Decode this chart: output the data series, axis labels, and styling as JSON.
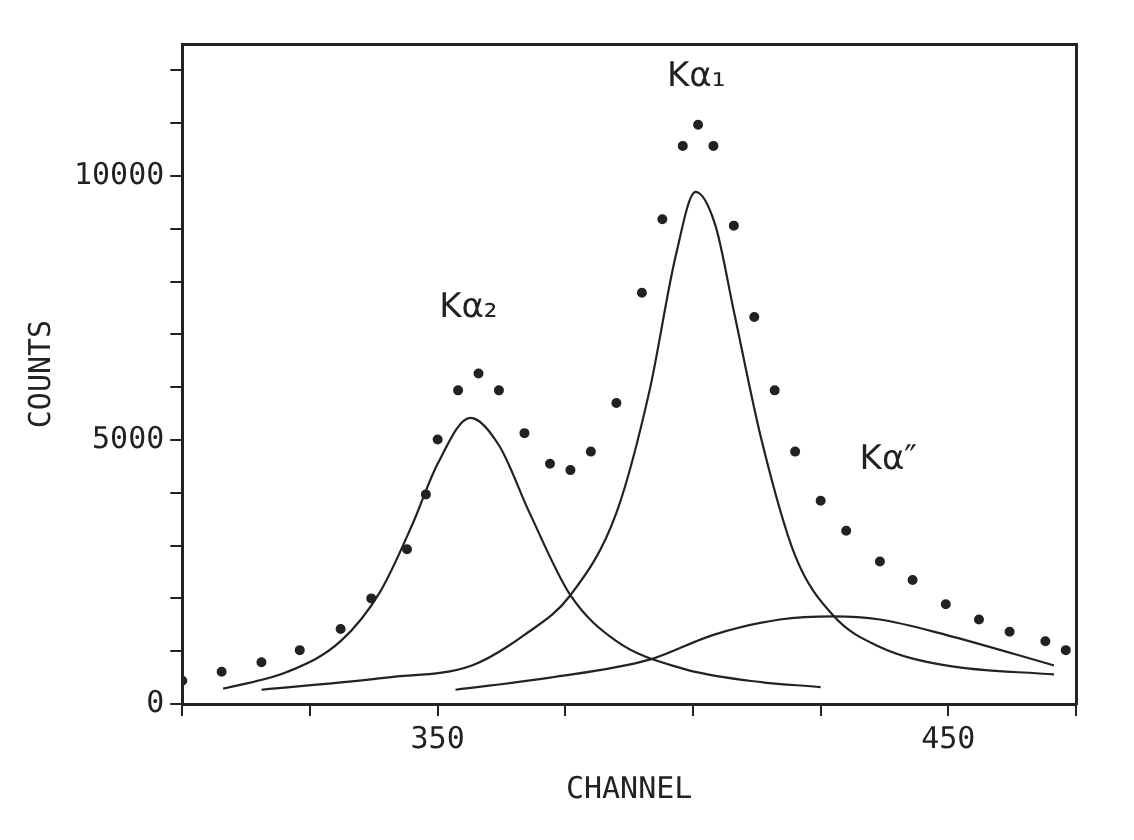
{
  "chart_data": {
    "type": "line",
    "xlabel": "CHANNEL",
    "ylabel": "COUNTS",
    "xlim": [
      300,
      475
    ],
    "xticks": [
      {
        "value": 300,
        "label": null
      },
      {
        "value": 325,
        "label": null
      },
      350,
      {
        "value": 375,
        "label": null
      },
      {
        "value": 400,
        "label": null
      },
      {
        "value": 425,
        "label": null
      },
      450,
      {
        "value": 475,
        "label": null
      }
    ],
    "ylim": [
      0,
      12500
    ],
    "yticks": [
      0,
      {
        "value": 1000,
        "label": null
      },
      {
        "value": 2000,
        "label": null
      },
      {
        "value": 3000,
        "label": null
      },
      {
        "value": 4000,
        "label": null
      },
      5000,
      {
        "value": 6000,
        "label": null
      },
      {
        "value": 7000,
        "label": null
      },
      {
        "value": 8000,
        "label": null
      },
      {
        "value": 9000,
        "label": null
      },
      10000,
      {
        "value": 11000,
        "label": null
      },
      {
        "value": 12000,
        "label": null
      }
    ],
    "grid": false,
    "legend": false,
    "series": [
      {
        "type": "scatter",
        "marker": "circle",
        "color": "#222222",
        "x": [
          300,
          307.7,
          315.5,
          323,
          331,
          337,
          344,
          347.7,
          350,
          354,
          358,
          362,
          367,
          372,
          376,
          380,
          385,
          390,
          394,
          398,
          401,
          404,
          408,
          412,
          416,
          420,
          425,
          430,
          436.6,
          443,
          449.5,
          456,
          462,
          469,
          473
        ],
        "values": [
          440,
          610,
          790,
          1020,
          1420,
          2000,
          2930,
          3970,
          5010,
          5940,
          6260,
          5940,
          5130,
          4550,
          4430,
          4780,
          5700,
          7790,
          9180,
          10570,
          10970,
          10570,
          9060,
          7330,
          5940,
          4780,
          3850,
          3280,
          2700,
          2350,
          1890,
          1600,
          1370,
          1190,
          1020
        ]
      },
      {
        "type": "line",
        "marker": "none",
        "color": "#222222",
        "x": [
          308,
          320.6,
          331,
          338.7,
          345,
          350,
          356.4,
          362,
          368,
          376,
          385,
          398,
          411,
          425
        ],
        "values": [
          290,
          610,
          1190,
          2120,
          3390,
          4550,
          5420,
          4900,
          3620,
          2060,
          1190,
          670,
          440,
          320
        ]
      },
      {
        "type": "line",
        "marker": "none",
        "color": "#222222",
        "x": [
          315.5,
          340,
          356.7,
          367,
          376,
          385,
          391.5,
          396.6,
          400.5,
          404.4,
          408,
          413.4,
          420,
          427.6,
          436.6,
          449.5,
          470.7
        ],
        "values": [
          270,
          500,
          730,
          1310,
          2060,
          3620,
          5940,
          8480,
          9700,
          9060,
          7440,
          5010,
          2810,
          1660,
          1080,
          730,
          560
        ]
      },
      {
        "type": "line",
        "marker": "none",
        "color": "#222222",
        "x": [
          353.5,
          372,
          391.5,
          404,
          417,
          427.6,
          436.6,
          449.5,
          470.7
        ],
        "values": [
          270,
          500,
          840,
          1310,
          1600,
          1660,
          1600,
          1310,
          730
        ]
      }
    ],
    "annotations": [
      "Kα₂",
      "Kα₁",
      "Kα″"
    ]
  }
}
